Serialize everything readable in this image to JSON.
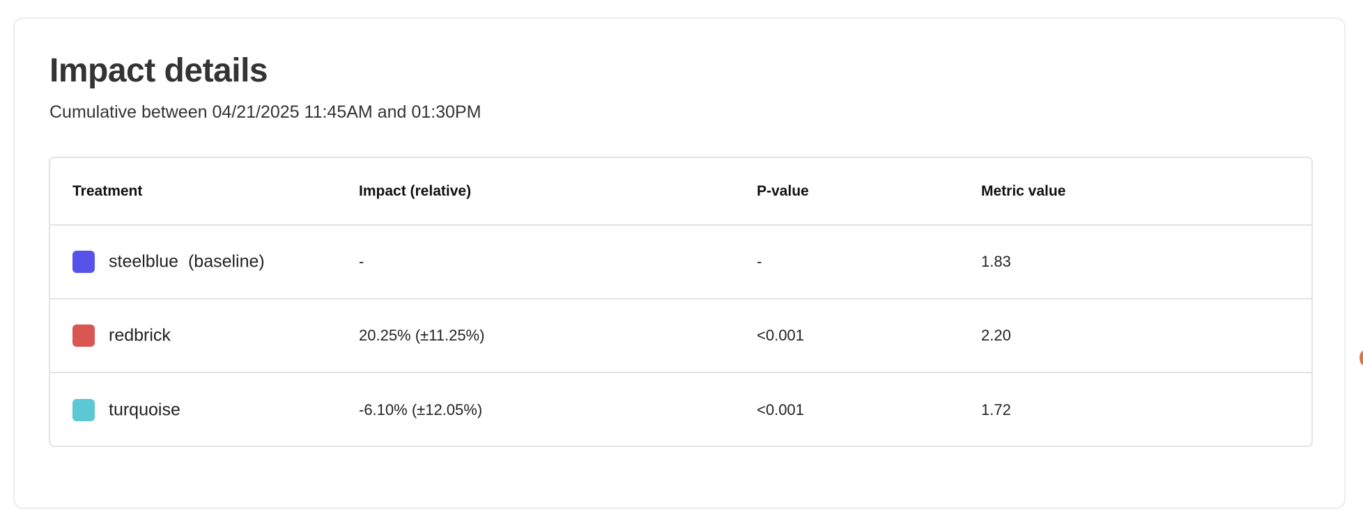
{
  "card": {
    "title": "Impact details",
    "subtitle": "Cumulative between 04/21/2025 11:45AM and 01:30PM"
  },
  "table": {
    "headers": [
      "Treatment",
      "Impact (relative)",
      "P-value",
      "Metric value"
    ],
    "rows": [
      {
        "treatment": "steelblue  (baseline)",
        "color": "#5753EA",
        "impact": "-",
        "p_value": "-",
        "metric": "1.83"
      },
      {
        "treatment": "redbrick",
        "color": "#D95652",
        "impact": "20.25% (±11.25%)",
        "p_value": "<0.001",
        "metric": "2.20"
      },
      {
        "treatment": "turquoise",
        "color": "#5BC8D4",
        "impact": "-6.10% (±12.05%)",
        "p_value": "<0.001",
        "metric": "1.72"
      }
    ]
  }
}
